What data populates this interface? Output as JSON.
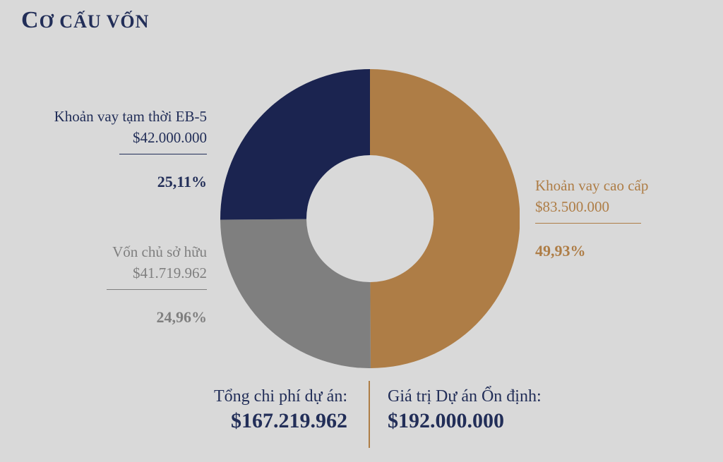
{
  "title": {
    "lead": "C",
    "rest": "Ơ CẤU VỐN",
    "full": "Cơ cấu vốn"
  },
  "colors": {
    "background": "#d9d9d9",
    "navy": "#1b2450",
    "navy_text": "#222e58",
    "gray": "#7f7f7f",
    "gold": "#ae7d46"
  },
  "chart_data": {
    "type": "pie",
    "subtype": "donut",
    "title": "Cơ cấu vốn",
    "direction": "clockwise",
    "start_angle_deg": 0,
    "inner_radius_ratio": 0.425,
    "legend_position": "callouts-beside-slices",
    "segments": [
      {
        "id": "senior-loan",
        "label": "Khoản vay cao cấp",
        "amount": "$83.500.000",
        "value": 49.93,
        "percent_label": "49,93%",
        "color": "#ae7d46"
      },
      {
        "id": "equity",
        "label": "Vốn chủ sở hữu",
        "amount": "$41.719.962",
        "value": 24.96,
        "percent_label": "24,96%",
        "color": "#7f7f7f"
      },
      {
        "id": "eb5-bridge-loan",
        "label": "Khoản vay tạm thời EB-5",
        "amount": "$42.000.000",
        "value": 25.11,
        "percent_label": "25,11%",
        "color": "#1b2450"
      }
    ]
  },
  "footer": {
    "left": {
      "label": "Tổng chi phí dự án:",
      "value": "$167.219.962"
    },
    "right": {
      "label": "Giá trị Dự án Ổn định:",
      "value": "$192.000.000"
    },
    "divider_color": "#ae7d46"
  }
}
